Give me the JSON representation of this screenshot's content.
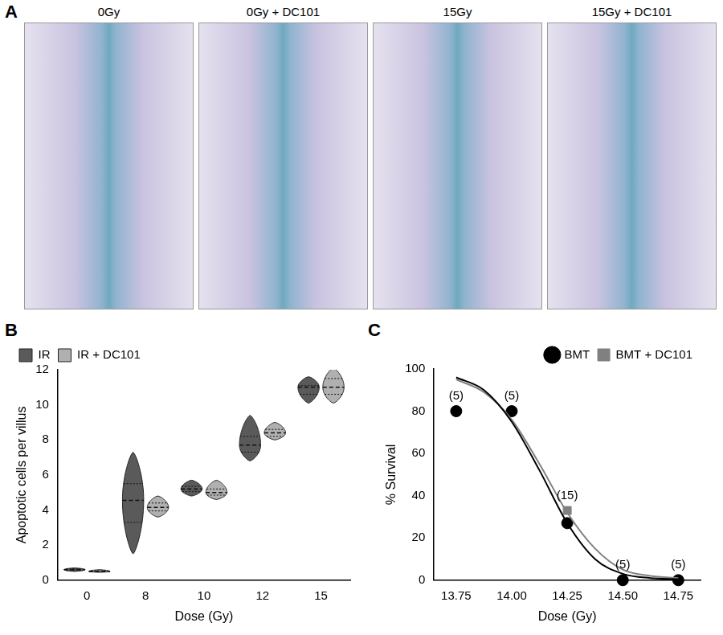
{
  "images_panel": {
    "panel": "A",
    "titles": [
      "0Gy",
      "0Gy + DC101",
      "15Gy",
      "15Gy + DC101"
    ]
  },
  "chart_data": [
    {
      "panel": "B",
      "type": "violin",
      "categories": [
        "0",
        "8",
        "10",
        "12",
        "15"
      ],
      "x_label": "Dose (Gy)",
      "y_label": "Apoptotic cells per villus",
      "ylim": [
        0,
        12
      ],
      "yticks": [
        0,
        2,
        4,
        6,
        8,
        10,
        12
      ],
      "grid": false,
      "legend": "top left",
      "series": [
        {
          "name": "IR",
          "color": "#5a5a5a",
          "min": [
            0.5,
            1.5,
            4.8,
            6.8,
            10.1
          ],
          "q1": [
            0.55,
            3.3,
            5.05,
            7.3,
            10.6
          ],
          "median": [
            0.6,
            4.55,
            5.2,
            7.7,
            11.0
          ],
          "q3": [
            0.65,
            5.5,
            5.35,
            8.2,
            11.1
          ],
          "max": [
            0.7,
            7.3,
            5.7,
            9.4,
            11.6
          ]
        },
        {
          "name": "IR + DC101",
          "color": "#b0b0b0",
          "min": [
            0.45,
            3.6,
            4.6,
            8.0,
            10.1
          ],
          "q1": [
            0.48,
            3.95,
            4.85,
            8.2,
            10.6
          ],
          "median": [
            0.5,
            4.15,
            5.0,
            8.4,
            11.0
          ],
          "q3": [
            0.55,
            4.4,
            5.2,
            8.6,
            11.5
          ],
          "max": [
            0.6,
            4.8,
            5.7,
            9.0,
            12.1
          ]
        }
      ]
    },
    {
      "panel": "C",
      "type": "scatter",
      "x_label": "Dose (Gy)",
      "y_label": "% Survival",
      "xlim": [
        13.65,
        14.85
      ],
      "xticks": [
        13.75,
        {
          "value": 14,
          "label": "14.00"
        },
        14.25,
        {
          "value": 14.5,
          "label": "14.50"
        },
        14.75
      ],
      "ylim": [
        0,
        100
      ],
      "yticks": [
        0,
        20,
        40,
        60,
        80,
        100
      ],
      "grid": false,
      "legend": "top right",
      "x": [
        13.75,
        14,
        14.25,
        14.5,
        14.75
      ],
      "n_labels": [
        "(5)",
        "(5)",
        "(15)",
        "(5)",
        "(5)"
      ],
      "series": [
        {
          "name": "BMT",
          "color": "#000000",
          "marker": "circle",
          "line_style": "solid",
          "values": [
            80,
            80,
            27,
            0,
            0
          ],
          "fit": {
            "x": [
              13.75,
              13.875,
              14,
              14.125,
              14.25,
              14.375,
              14.5,
              14.625,
              14.75
            ],
            "values": [
              96,
              90,
              75,
              52,
              27,
              10,
              3,
              1,
              0.5
            ]
          }
        },
        {
          "name": "BMT + DC101",
          "color": "#808080",
          "marker": "square",
          "line_style": "solid",
          "values": [
            80,
            80,
            33,
            0,
            0
          ],
          "fit": {
            "x": [
              13.75,
              13.875,
              14,
              14.125,
              14.25,
              14.375,
              14.5,
              14.625,
              14.75
            ],
            "values": [
              95,
              89,
              76,
              55,
              32,
              15,
              5,
              2,
              1
            ]
          }
        }
      ]
    }
  ]
}
